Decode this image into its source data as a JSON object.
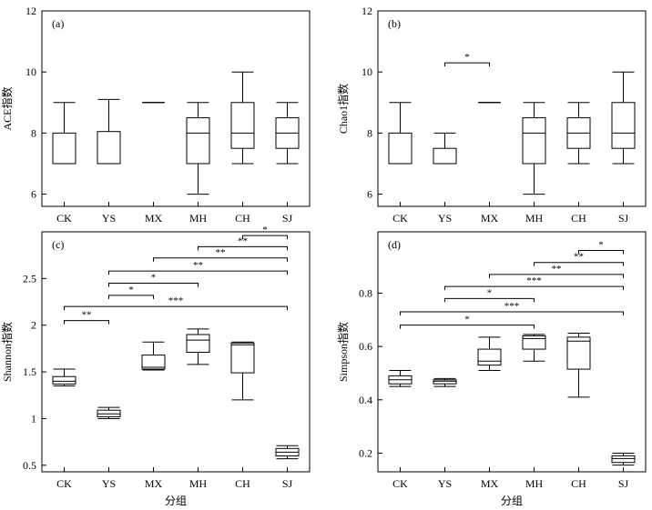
{
  "chart_data": [
    {
      "type": "boxplot",
      "panel_label": "(a)",
      "ylabel": "ACE指数",
      "xlabel": "",
      "categories": [
        "CK",
        "YS",
        "MX",
        "MH",
        "CH",
        "SJ"
      ],
      "ylim": [
        5.6,
        12
      ],
      "yticks": [
        6,
        8,
        10,
        12
      ],
      "boxes": [
        {
          "min": 7,
          "q1": 7,
          "median": 7,
          "q3": 8,
          "max": 9
        },
        {
          "min": 7,
          "q1": 7,
          "median": 7,
          "q3": 8.05,
          "max": 9.1
        },
        {
          "min": 9,
          "q1": 9,
          "median": 9,
          "q3": 9,
          "max": 9
        },
        {
          "min": 6,
          "q1": 7,
          "median": 8,
          "q3": 8.5,
          "max": 9
        },
        {
          "min": 7,
          "q1": 7.5,
          "median": 8,
          "q3": 9,
          "max": 10
        },
        {
          "min": 7,
          "q1": 7.5,
          "median": 8,
          "q3": 8.5,
          "max": 9
        }
      ],
      "significance": []
    },
    {
      "type": "boxplot",
      "panel_label": "(b)",
      "ylabel": "Chao1指数",
      "xlabel": "",
      "categories": [
        "CK",
        "YS",
        "MX",
        "MH",
        "CH",
        "SJ"
      ],
      "ylim": [
        5.6,
        12
      ],
      "yticks": [
        6,
        8,
        10,
        12
      ],
      "boxes": [
        {
          "min": 7,
          "q1": 7,
          "median": 7,
          "q3": 8,
          "max": 9
        },
        {
          "min": 7,
          "q1": 7,
          "median": 7,
          "q3": 7.5,
          "max": 8
        },
        {
          "min": 9,
          "q1": 9,
          "median": 9,
          "q3": 9,
          "max": 9
        },
        {
          "min": 6,
          "q1": 7,
          "median": 8,
          "q3": 8.5,
          "max": 9
        },
        {
          "min": 7,
          "q1": 7.5,
          "median": 8,
          "q3": 8.5,
          "max": 9
        },
        {
          "min": 7,
          "q1": 7.5,
          "median": 8,
          "q3": 9,
          "max": 10
        }
      ],
      "significance": [
        {
          "from": 1,
          "to": 2,
          "y": 10.3,
          "label": "*"
        }
      ]
    },
    {
      "type": "boxplot",
      "panel_label": "(c)",
      "ylabel": "Shannon指数",
      "xlabel": "分组",
      "categories": [
        "CK",
        "YS",
        "MX",
        "MH",
        "CH",
        "SJ"
      ],
      "ylim": [
        0.43,
        3.0
      ],
      "yticks": [
        0.5,
        1.0,
        1.5,
        2.0,
        2.5
      ],
      "boxes": [
        {
          "min": 1.35,
          "q1": 1.37,
          "median": 1.4,
          "q3": 1.45,
          "max": 1.53
        },
        {
          "min": 1.0,
          "q1": 1.02,
          "median": 1.05,
          "q3": 1.09,
          "max": 1.12
        },
        {
          "min": 1.52,
          "q1": 1.53,
          "median": 1.55,
          "q3": 1.68,
          "max": 1.82
        },
        {
          "min": 1.58,
          "q1": 1.71,
          "median": 1.84,
          "q3": 1.9,
          "max": 1.96
        },
        {
          "min": 1.2,
          "q1": 1.49,
          "median": 1.79,
          "q3": 1.81,
          "max": 1.82
        },
        {
          "min": 0.57,
          "q1": 0.6,
          "median": 0.64,
          "q3": 0.68,
          "max": 0.71
        }
      ],
      "significance": [
        {
          "from": 0,
          "to": 1,
          "y": 2.05,
          "label": "**"
        },
        {
          "from": 0,
          "to": 5,
          "y": 2.2,
          "label": "***"
        },
        {
          "from": 1,
          "to": 2,
          "y": 2.32,
          "label": "*"
        },
        {
          "from": 1,
          "to": 3,
          "y": 2.45,
          "label": "*"
        },
        {
          "from": 1,
          "to": 5,
          "y": 2.58,
          "label": "**"
        },
        {
          "from": 2,
          "to": 5,
          "y": 2.72,
          "label": "**"
        },
        {
          "from": 3,
          "to": 5,
          "y": 2.84,
          "label": "**"
        },
        {
          "from": 4,
          "to": 5,
          "y": 2.96,
          "label": "*"
        }
      ]
    },
    {
      "type": "boxplot",
      "panel_label": "(d)",
      "ylabel": "Simpson指数",
      "xlabel": "分组",
      "categories": [
        "CK",
        "YS",
        "MX",
        "MH",
        "CH",
        "SJ"
      ],
      "ylim": [
        0.13,
        1.03
      ],
      "yticks": [
        0.2,
        0.4,
        0.6,
        0.8
      ],
      "boxes": [
        {
          "min": 0.45,
          "q1": 0.46,
          "median": 0.475,
          "q3": 0.49,
          "max": 0.51
        },
        {
          "min": 0.45,
          "q1": 0.46,
          "median": 0.47,
          "q3": 0.475,
          "max": 0.48
        },
        {
          "min": 0.51,
          "q1": 0.53,
          "median": 0.545,
          "q3": 0.59,
          "max": 0.635
        },
        {
          "min": 0.545,
          "q1": 0.59,
          "median": 0.63,
          "q3": 0.64,
          "max": 0.645
        },
        {
          "min": 0.41,
          "q1": 0.515,
          "median": 0.62,
          "q3": 0.635,
          "max": 0.65
        },
        {
          "min": 0.155,
          "q1": 0.165,
          "median": 0.18,
          "q3": 0.19,
          "max": 0.2
        }
      ],
      "significance": [
        {
          "from": 0,
          "to": 3,
          "y": 0.68,
          "label": "*"
        },
        {
          "from": 0,
          "to": 5,
          "y": 0.73,
          "label": "***"
        },
        {
          "from": 1,
          "to": 3,
          "y": 0.78,
          "label": "*"
        },
        {
          "from": 1,
          "to": 5,
          "y": 0.825,
          "label": "***"
        },
        {
          "from": 2,
          "to": 5,
          "y": 0.87,
          "label": "**"
        },
        {
          "from": 3,
          "to": 5,
          "y": 0.915,
          "label": "**"
        },
        {
          "from": 4,
          "to": 5,
          "y": 0.96,
          "label": "*"
        }
      ]
    }
  ]
}
